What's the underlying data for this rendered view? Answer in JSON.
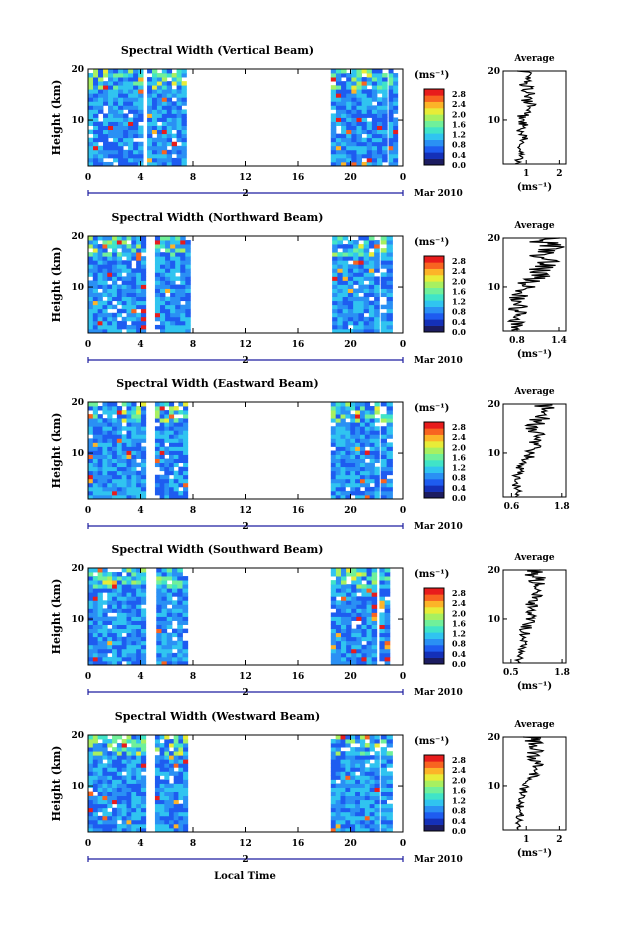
{
  "colors": {
    "scale": [
      "#1c1c60",
      "#1430b8",
      "#1e5cf0",
      "#2a90f4",
      "#30c4f0",
      "#40e4c8",
      "#70f09a",
      "#a8f060",
      "#e8ec38",
      "#fcb428",
      "#f86420",
      "#e81c1c"
    ],
    "background": "#ffffff"
  },
  "figure": {
    "xlabel": "Local Time"
  },
  "chart_data": [
    {
      "type": "heatmap",
      "title": "Spectral Width (Vertical Beam)",
      "ylabel": "Height (km)",
      "ylim": [
        1,
        20
      ],
      "yticks": [
        "20",
        "10"
      ],
      "xlim": [
        0,
        24
      ],
      "xticks": [
        "0",
        "4",
        "8",
        "12",
        "16",
        "20",
        "0"
      ],
      "day_marker": "2",
      "date_label": "Mar 2010",
      "data_segments_hours": [
        [
          0,
          4.2
        ],
        [
          4.5,
          7.5
        ],
        [
          18.5,
          22.8
        ],
        [
          22.9,
          23.6
        ]
      ],
      "colorbar": {
        "unit": "(ms⁻¹)",
        "ticks": [
          "2.8",
          "2.4",
          "2.0",
          "1.6",
          "1.2",
          "0.8",
          "0.4",
          "0.0"
        ]
      },
      "average": {
        "title": "Average",
        "xlabel": "(ms⁻¹)",
        "xticks": [
          "1",
          "2"
        ],
        "xlim": [
          0.3,
          2.2
        ],
        "yticks": [
          "20",
          "10"
        ],
        "profile": [
          0.75,
          0.85,
          0.9,
          0.8,
          0.85,
          0.95,
          0.8,
          0.85,
          0.9,
          0.85,
          1.0,
          0.95,
          1.1,
          1.0,
          1.15,
          1.05,
          1.0,
          0.95,
          0.9,
          0.85
        ]
      }
    },
    {
      "type": "heatmap",
      "title": "Spectral Width (Northward Beam)",
      "ylabel": "Height (km)",
      "ylim": [
        1,
        20
      ],
      "yticks": [
        "20",
        "10"
      ],
      "xlim": [
        0,
        24
      ],
      "xticks": [
        "0",
        "4",
        "8",
        "12",
        "16",
        "20",
        "0"
      ],
      "day_marker": "2",
      "date_label": "Mar 2010",
      "data_segments_hours": [
        [
          0,
          4.4
        ],
        [
          5.1,
          7.8
        ],
        [
          18.6,
          22.2
        ],
        [
          22.3,
          23.2
        ]
      ],
      "colorbar": {
        "unit": "(ms⁻¹)",
        "ticks": [
          "2.8",
          "2.4",
          "2.0",
          "1.6",
          "1.2",
          "0.8",
          "0.4",
          "0.0"
        ]
      },
      "average": {
        "title": "Average",
        "xlabel": "(ms⁻¹)",
        "xticks": [
          "0.8",
          "1.4"
        ],
        "xlim": [
          0.6,
          1.5
        ],
        "yticks": [
          "20",
          "10"
        ],
        "profile": [
          0.75,
          0.8,
          0.78,
          0.82,
          0.8,
          0.85,
          0.8,
          0.82,
          0.85,
          0.95,
          1.05,
          1.1,
          1.15,
          1.2,
          1.25,
          1.2,
          1.3,
          1.25,
          1.2,
          1.15
        ]
      }
    },
    {
      "type": "heatmap",
      "title": "Spectral Width (Eastward Beam)",
      "ylabel": "Height (km)",
      "ylim": [
        1,
        20
      ],
      "yticks": [
        "20",
        "10"
      ],
      "xlim": [
        0,
        24
      ],
      "xticks": [
        "0",
        "4",
        "8",
        "12",
        "16",
        "20",
        "0"
      ],
      "day_marker": "2",
      "date_label": "Mar 2010",
      "data_segments_hours": [
        [
          0,
          4.4
        ],
        [
          5.1,
          7.6
        ],
        [
          18.5,
          22.2
        ],
        [
          22.3,
          23.2
        ]
      ],
      "colorbar": {
        "unit": "(ms⁻¹)",
        "ticks": [
          "2.8",
          "2.4",
          "2.0",
          "1.6",
          "1.2",
          "0.8",
          "0.4",
          "0.0"
        ]
      },
      "average": {
        "title": "Average",
        "xlabel": "",
        "xticks": [
          "0.6",
          "1.8"
        ],
        "xlim": [
          0.4,
          1.9
        ],
        "yticks": [
          "20",
          "10"
        ],
        "profile": [
          0.7,
          0.75,
          0.72,
          0.78,
          0.75,
          0.8,
          0.85,
          0.9,
          1.0,
          1.1,
          1.2,
          1.15,
          1.3,
          1.2,
          1.1,
          1.25,
          1.3,
          1.2,
          1.4,
          1.3
        ]
      }
    },
    {
      "type": "heatmap",
      "title": "Spectral Width (Southward Beam)",
      "ylabel": "Height (km)",
      "ylim": [
        1,
        20
      ],
      "yticks": [
        "20",
        "10"
      ],
      "xlim": [
        0,
        24
      ],
      "xticks": [
        "0",
        "4",
        "8",
        "12",
        "16",
        "20",
        "0"
      ],
      "day_marker": "2",
      "date_label": "Mar 2010",
      "data_segments_hours": [
        [
          0,
          4.4
        ],
        [
          5.2,
          7.6
        ],
        [
          18.5,
          22.0
        ],
        [
          22.2,
          23.0
        ]
      ],
      "colorbar": {
        "unit": "(ms⁻¹)",
        "ticks": [
          "2.8",
          "2.4",
          "2.0",
          "1.6",
          "1.2",
          "0.8",
          "0.4",
          "0.0"
        ]
      },
      "average": {
        "title": "Average",
        "xlabel": "(ms⁻¹)",
        "xticks": [
          "0.5",
          "1.8"
        ],
        "xlim": [
          0.3,
          1.9
        ],
        "yticks": [
          "20",
          "10"
        ],
        "profile": [
          0.7,
          0.72,
          0.75,
          0.8,
          0.78,
          0.82,
          0.85,
          0.9,
          0.95,
          1.0,
          1.05,
          1.1,
          1.0,
          1.15,
          1.1,
          1.2,
          1.15,
          1.25,
          1.1,
          1.0
        ]
      }
    },
    {
      "type": "heatmap",
      "title": "Spectral Width (Westward Beam)",
      "ylabel": "Height (km)",
      "ylim": [
        1,
        20
      ],
      "yticks": [
        "20",
        "10"
      ],
      "xlim": [
        0,
        24
      ],
      "xticks": [
        "0",
        "4",
        "8",
        "12",
        "16",
        "20",
        "0"
      ],
      "day_marker": "2",
      "date_label": "Mar 2010",
      "data_segments_hours": [
        [
          0,
          4.4
        ],
        [
          5.1,
          7.6
        ],
        [
          18.5,
          22.2
        ],
        [
          22.3,
          23.2
        ]
      ],
      "colorbar": {
        "unit": "(ms⁻¹)",
        "ticks": [
          "2.8",
          "2.4",
          "2.0",
          "1.6",
          "1.2",
          "0.8",
          "0.4",
          "0.0"
        ]
      },
      "average": {
        "title": "Average",
        "xlabel": "(ms⁻¹)",
        "xticks": [
          "1",
          "2"
        ],
        "xlim": [
          0.3,
          2.2
        ],
        "yticks": [
          "20",
          "10"
        ],
        "profile": [
          0.75,
          0.78,
          0.8,
          0.85,
          0.8,
          0.82,
          0.85,
          0.9,
          0.95,
          1.0,
          1.1,
          1.2,
          1.15,
          1.3,
          1.25,
          1.2,
          1.35,
          1.3,
          1.2,
          1.15
        ]
      }
    }
  ]
}
